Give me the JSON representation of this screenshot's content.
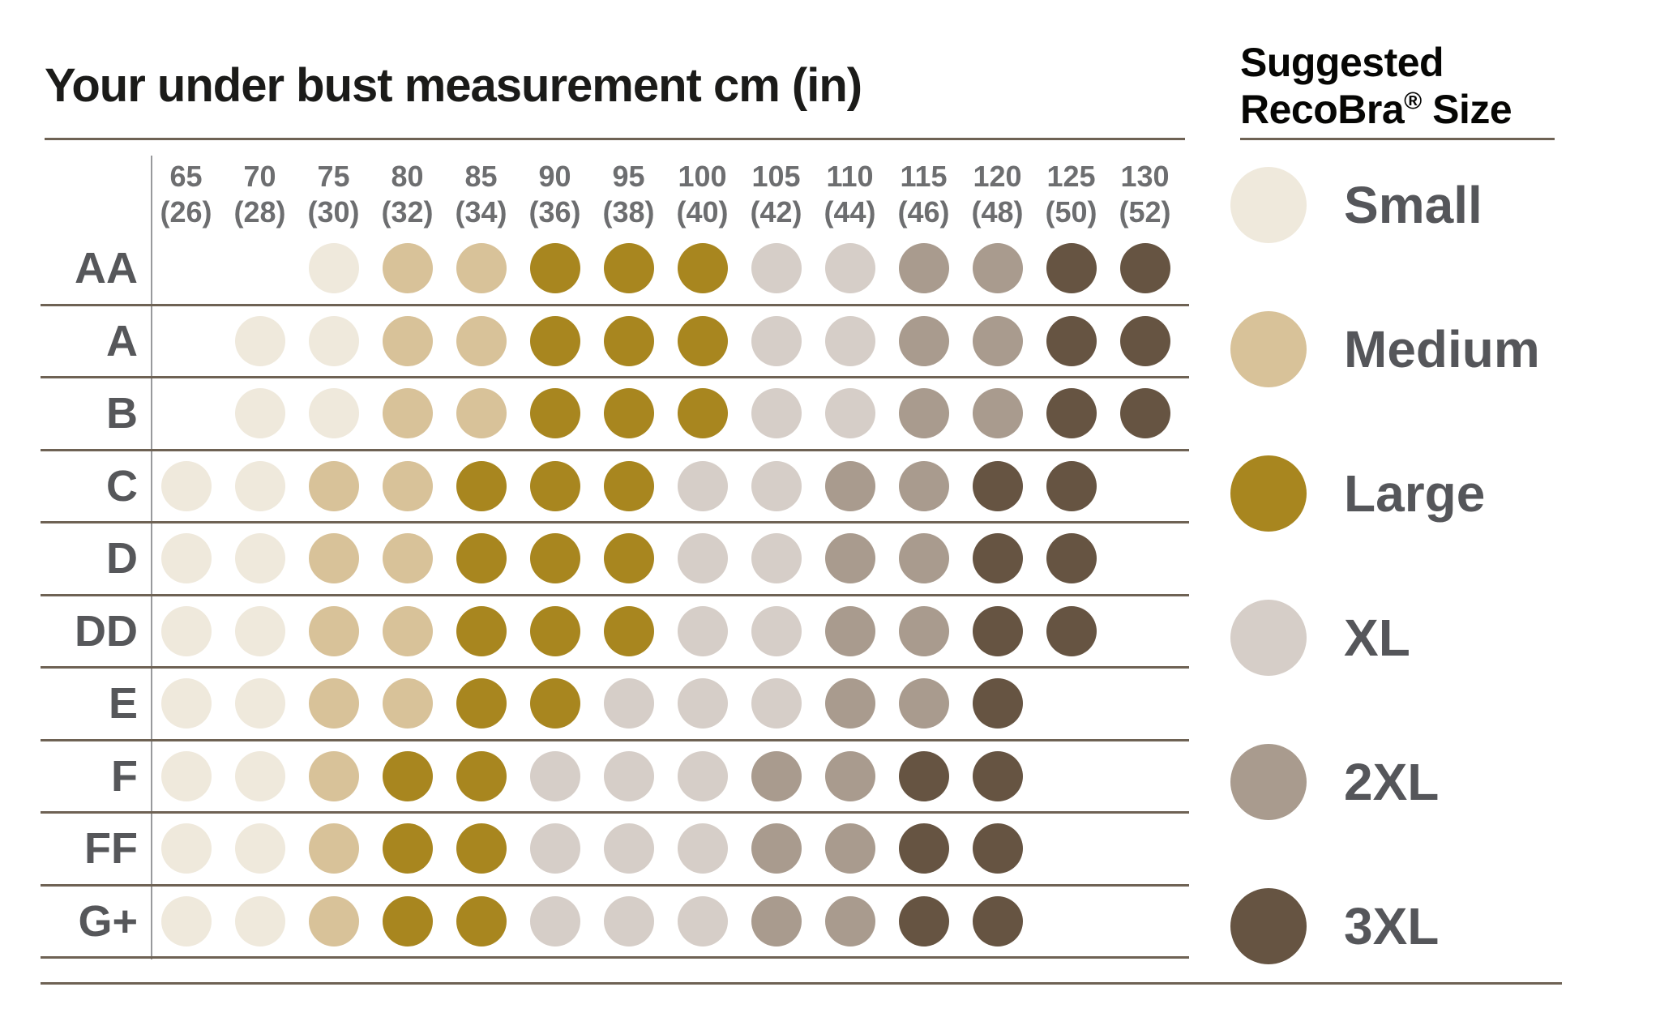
{
  "title": "Your under bust measurement cm (in)",
  "legend": {
    "title_line1": "Suggested",
    "brand": "RecoBra",
    "reg_mark": "®",
    "title_line2_suffix": " Size",
    "items": [
      {
        "key": "S",
        "label": "Small",
        "color": "#efe9dc"
      },
      {
        "key": "M",
        "label": "Medium",
        "color": "#d8c299"
      },
      {
        "key": "L",
        "label": "Large",
        "color": "#a8861f"
      },
      {
        "key": "XL",
        "label": "XL",
        "color": "#d6cec8"
      },
      {
        "key": "2XL",
        "label": "2XL",
        "color": "#a99b8e"
      },
      {
        "key": "3XL",
        "label": "3XL",
        "color": "#665442"
      }
    ]
  },
  "chart_data": {
    "type": "heatmap",
    "title": "Your under bust measurement cm (in)",
    "x_axis_label": "Under bust measurement cm (in)",
    "x_categories_cm": [
      65,
      70,
      75,
      80,
      85,
      90,
      95,
      100,
      105,
      110,
      115,
      120,
      125,
      130
    ],
    "x_categories_in": [
      26,
      28,
      30,
      32,
      34,
      36,
      38,
      40,
      42,
      44,
      46,
      48,
      50,
      52
    ],
    "rows": [
      "AA",
      "A",
      "B",
      "C",
      "D",
      "DD",
      "E",
      "F",
      "FF",
      "G+"
    ],
    "legend_position": "right",
    "grid": "horizontal-dividers",
    "matrix": [
      [
        null,
        null,
        "S",
        "M",
        "M",
        "L",
        "L",
        "L",
        "XL",
        "XL",
        "2XL",
        "2XL",
        "3XL",
        "3XL"
      ],
      [
        null,
        "S",
        "S",
        "M",
        "M",
        "L",
        "L",
        "L",
        "XL",
        "XL",
        "2XL",
        "2XL",
        "3XL",
        "3XL"
      ],
      [
        null,
        "S",
        "S",
        "M",
        "M",
        "L",
        "L",
        "L",
        "XL",
        "XL",
        "2XL",
        "2XL",
        "3XL",
        "3XL"
      ],
      [
        "S",
        "S",
        "M",
        "M",
        "L",
        "L",
        "L",
        "XL",
        "XL",
        "2XL",
        "2XL",
        "3XL",
        "3XL",
        null
      ],
      [
        "S",
        "S",
        "M",
        "M",
        "L",
        "L",
        "L",
        "XL",
        "XL",
        "2XL",
        "2XL",
        "3XL",
        "3XL",
        null
      ],
      [
        "S",
        "S",
        "M",
        "M",
        "L",
        "L",
        "L",
        "XL",
        "XL",
        "2XL",
        "2XL",
        "3XL",
        "3XL",
        null
      ],
      [
        "S",
        "S",
        "M",
        "M",
        "L",
        "L",
        "XL",
        "XL",
        "XL",
        "2XL",
        "2XL",
        "3XL",
        null,
        null
      ],
      [
        "S",
        "S",
        "M",
        "L",
        "L",
        "XL",
        "XL",
        "XL",
        "2XL",
        "2XL",
        "3XL",
        "3XL",
        null,
        null
      ],
      [
        "S",
        "S",
        "M",
        "L",
        "L",
        "XL",
        "XL",
        "XL",
        "2XL",
        "2XL",
        "3XL",
        "3XL",
        null,
        null
      ],
      [
        "S",
        "S",
        "M",
        "L",
        "L",
        "XL",
        "XL",
        "XL",
        "2XL",
        "2XL",
        "3XL",
        "3XL",
        null,
        null
      ]
    ]
  }
}
